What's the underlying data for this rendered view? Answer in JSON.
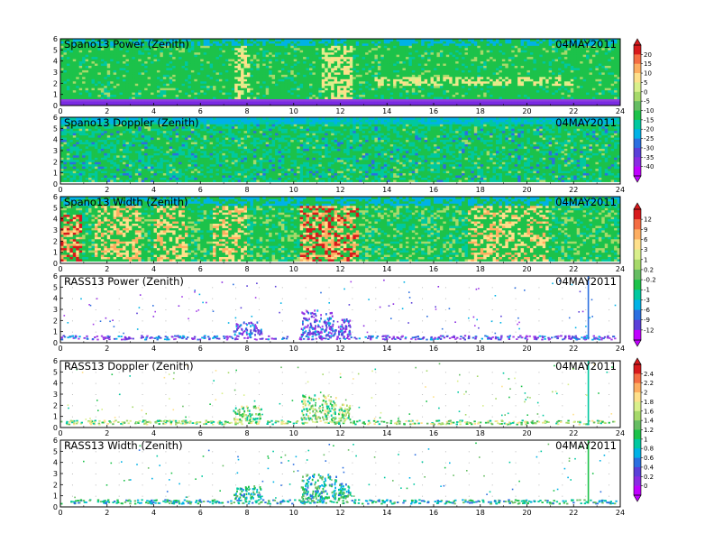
{
  "figure": {
    "date": "04MAY2011"
  },
  "chart_data": [
    {
      "type": "heatmap",
      "title": "Spano13 Power (Zenith)",
      "date": "04MAY2011",
      "x_ticks": [
        "0",
        "2",
        "4",
        "6",
        "8",
        "10",
        "12",
        "14",
        "16",
        "18",
        "20",
        "22",
        "24"
      ],
      "y_ticks": [
        "0",
        "1",
        "2",
        "3",
        "4",
        "5",
        "6"
      ],
      "xlim": [
        0,
        24
      ],
      "ylim": [
        0,
        6
      ],
      "colorbar": "power",
      "style": "dense"
    },
    {
      "type": "heatmap",
      "title": "Spano13 Doppler (Zenith)",
      "date": "04MAY2011",
      "x_ticks": [
        "0",
        "2",
        "4",
        "6",
        "8",
        "10",
        "12",
        "14",
        "16",
        "18",
        "20",
        "22",
        "24"
      ],
      "y_ticks": [
        "0",
        "1",
        "2",
        "3",
        "4",
        "5",
        "6"
      ],
      "xlim": [
        0,
        24
      ],
      "ylim": [
        0,
        6
      ],
      "colorbar": "power",
      "style": "dense"
    },
    {
      "type": "heatmap",
      "title": "Spano13 Width (Zenith)",
      "date": "04MAY2011",
      "x_ticks": [
        "0",
        "2",
        "4",
        "6",
        "8",
        "10",
        "12",
        "14",
        "16",
        "18",
        "20",
        "22",
        "24"
      ],
      "y_ticks": [
        "0",
        "1",
        "2",
        "3",
        "4",
        "5",
        "6"
      ],
      "xlim": [
        0,
        24
      ],
      "ylim": [
        0,
        6
      ],
      "colorbar": "width",
      "style": "dense"
    },
    {
      "type": "heatmap",
      "title": "RASS13 Power (Zenith)",
      "date": "04MAY2011",
      "x_ticks": [
        "0",
        "2",
        "4",
        "6",
        "8",
        "10",
        "12",
        "14",
        "16",
        "18",
        "20",
        "22",
        "24"
      ],
      "y_ticks": [
        "0",
        "1",
        "2",
        "3",
        "4",
        "5",
        "6"
      ],
      "xlim": [
        0,
        24
      ],
      "ylim": [
        0,
        6
      ],
      "colorbar": "width",
      "style": "sparse"
    },
    {
      "type": "heatmap",
      "title": "RASS13 Doppler (Zenith)",
      "date": "04MAY2011",
      "x_ticks": [
        "0",
        "2",
        "4",
        "6",
        "8",
        "10",
        "12",
        "14",
        "16",
        "18",
        "20",
        "22",
        "24"
      ],
      "y_ticks": [
        "0",
        "1",
        "2",
        "3",
        "4",
        "5",
        "6"
      ],
      "xlim": [
        0,
        24
      ],
      "ylim": [
        0,
        6
      ],
      "colorbar": "rass",
      "style": "sparse"
    },
    {
      "type": "heatmap",
      "title": "RASS13 Width (Zenith)",
      "date": "04MAY2011",
      "x_ticks": [
        "0",
        "2",
        "4",
        "6",
        "8",
        "10",
        "12",
        "14",
        "16",
        "18",
        "20",
        "22",
        "24"
      ],
      "y_ticks": [
        "0",
        "1",
        "2",
        "3",
        "4",
        "5",
        "6"
      ],
      "xlim": [
        0,
        24
      ],
      "ylim": [
        0,
        6
      ],
      "colorbar": "rass",
      "style": "sparse"
    }
  ],
  "colorbars": [
    {
      "id": "power",
      "labels": [
        "20",
        "15",
        "10",
        "5",
        "0",
        "-5",
        "-10",
        "-15",
        "-20",
        "-25",
        "-30",
        "-35",
        "-40"
      ],
      "colors": [
        "#d7191c",
        "#f46d43",
        "#fdae61",
        "#fee08b",
        "#d9ef8b",
        "#a6d96a",
        "#66bd63",
        "#1cc24a",
        "#00c8a0",
        "#00b2e6",
        "#2b6fe0",
        "#5a3fd8",
        "#8a2be2",
        "#c000ff"
      ]
    },
    {
      "id": "width",
      "labels": [
        "12",
        "9",
        "6",
        "3",
        "1",
        "0.2",
        "-0.2",
        "-1",
        "-3",
        "-6",
        "-9",
        "-12"
      ],
      "colors": [
        "#d7191c",
        "#f46d43",
        "#fdae61",
        "#fee08b",
        "#d9ef8b",
        "#a6d96a",
        "#66bd63",
        "#1cc24a",
        "#00c8a0",
        "#00b2e6",
        "#2b6fe0",
        "#5a3fd8",
        "#c000ff"
      ]
    },
    {
      "id": "rass",
      "labels": [
        "2.4",
        "2.2",
        "2",
        "1.8",
        "1.6",
        "1.4",
        "1.2",
        "1",
        "0.8",
        "0.6",
        "0.4",
        "0.2",
        "0"
      ],
      "colors": [
        "#d7191c",
        "#f46d43",
        "#fdae61",
        "#fee08b",
        "#d9ef8b",
        "#a6d96a",
        "#66bd63",
        "#1cc24a",
        "#00c8a0",
        "#00b2e6",
        "#2b6fe0",
        "#5a3fd8",
        "#8a2be2",
        "#c000ff"
      ]
    }
  ]
}
